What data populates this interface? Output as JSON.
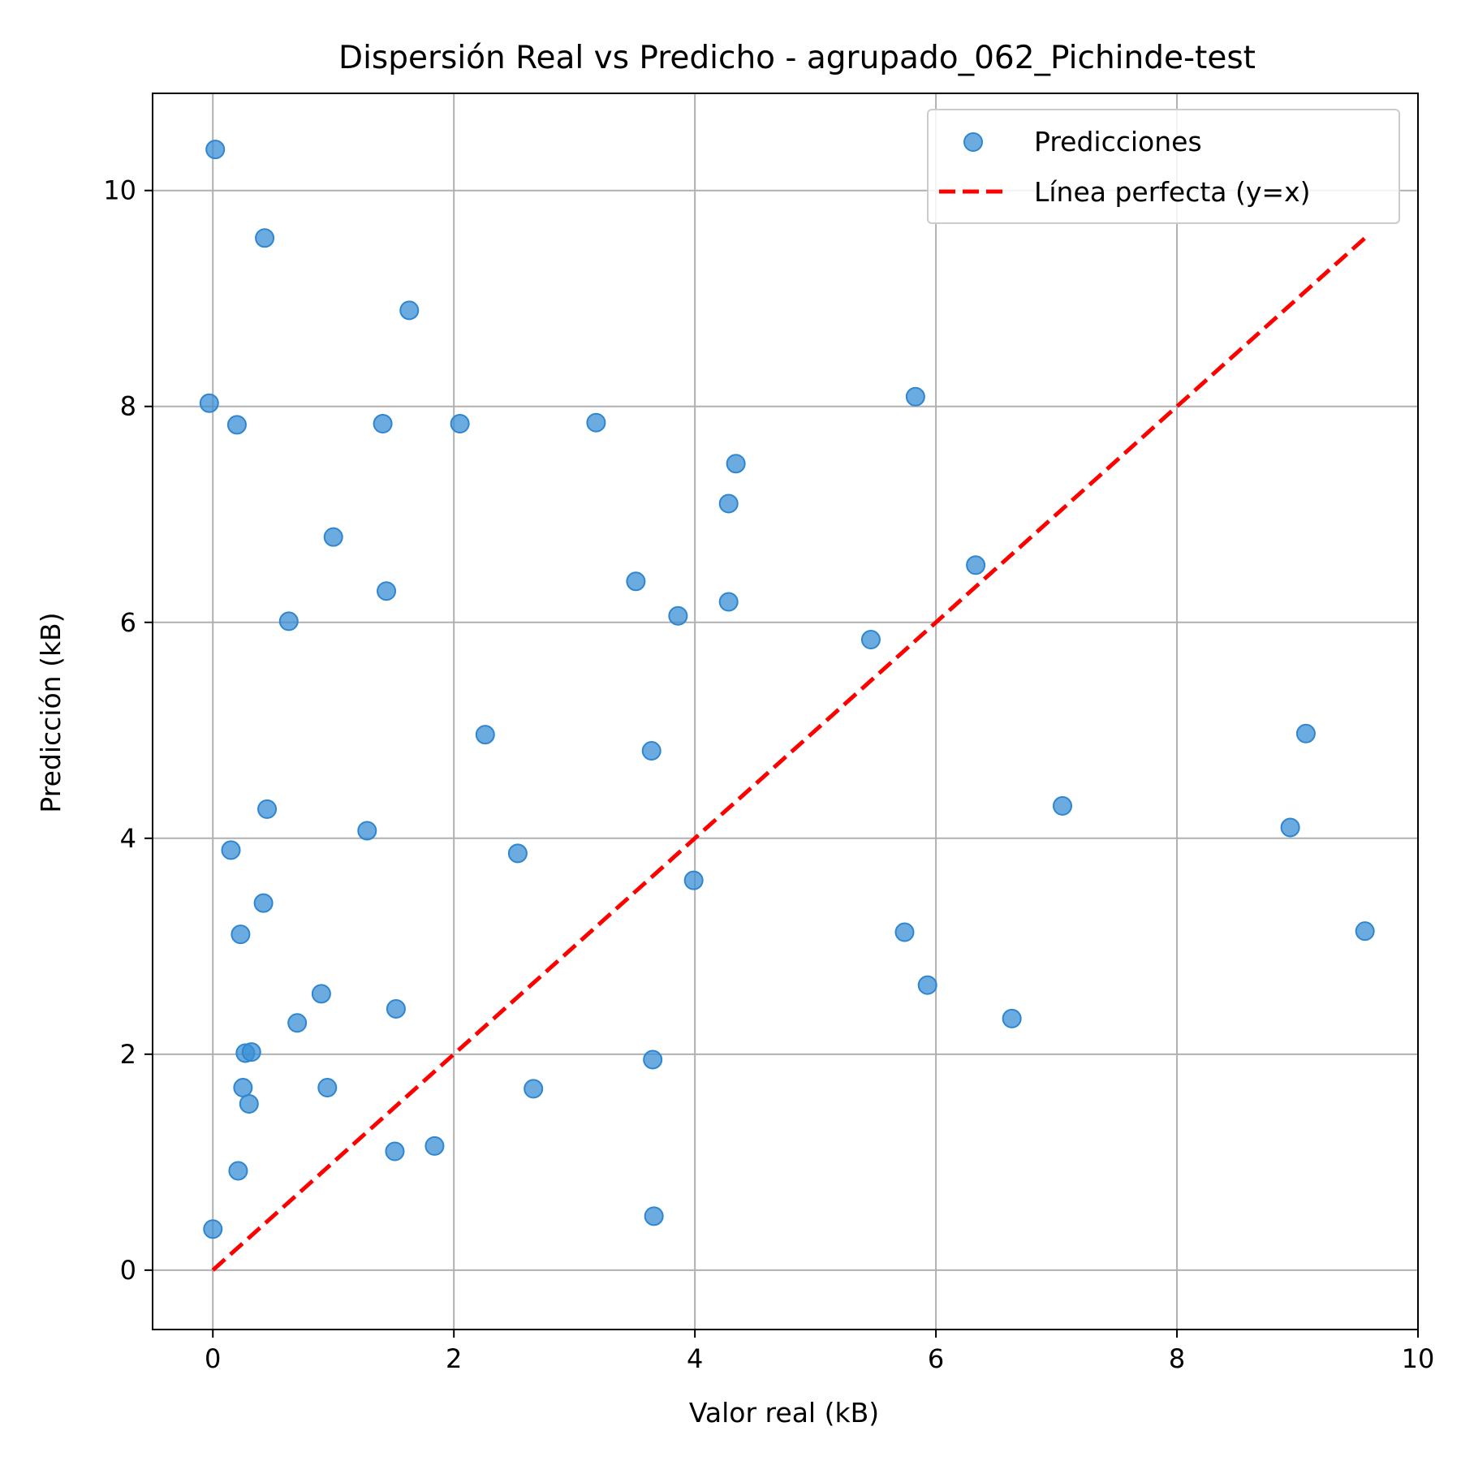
{
  "chart_data": {
    "type": "scatter",
    "title": "Dispersión Real vs Predicho - agrupado_062_Pichinde-test",
    "xlabel": "Valor real (kB)",
    "ylabel": "Predicción (kB)",
    "xlim": [
      -0.5,
      10.0
    ],
    "ylim": [
      -0.55,
      10.9
    ],
    "xticks": [
      0,
      2,
      4,
      6,
      8,
      10
    ],
    "yticks": [
      0,
      2,
      4,
      6,
      8,
      10
    ],
    "grid": true,
    "legend_position": "top-right",
    "colors": {
      "points": "#3a8fd6",
      "reference_line": "#ff0000",
      "grid": "#b0b0b0"
    },
    "series": [
      {
        "name": "Predicciones",
        "kind": "scatter",
        "points": [
          [
            0.02,
            10.38
          ],
          [
            0.43,
            9.56
          ],
          [
            1.63,
            8.89
          ],
          [
            -0.03,
            8.03
          ],
          [
            0.2,
            7.83
          ],
          [
            1.41,
            7.84
          ],
          [
            2.05,
            7.84
          ],
          [
            3.18,
            7.85
          ],
          [
            5.83,
            8.09
          ],
          [
            4.34,
            7.47
          ],
          [
            4.28,
            7.1
          ],
          [
            1.0,
            6.79
          ],
          [
            1.44,
            6.29
          ],
          [
            3.51,
            6.38
          ],
          [
            6.33,
            6.53
          ],
          [
            0.63,
            6.01
          ],
          [
            3.86,
            6.06
          ],
          [
            4.28,
            6.19
          ],
          [
            5.46,
            5.84
          ],
          [
            2.26,
            4.96
          ],
          [
            3.64,
            4.81
          ],
          [
            9.07,
            4.97
          ],
          [
            0.45,
            4.27
          ],
          [
            1.28,
            4.07
          ],
          [
            7.05,
            4.3
          ],
          [
            8.94,
            4.1
          ],
          [
            0.15,
            3.89
          ],
          [
            2.53,
            3.86
          ],
          [
            3.99,
            3.61
          ],
          [
            0.42,
            3.4
          ],
          [
            0.23,
            3.11
          ],
          [
            5.74,
            3.13
          ],
          [
            9.56,
            3.14
          ],
          [
            5.93,
            2.64
          ],
          [
            0.9,
            2.56
          ],
          [
            6.63,
            2.33
          ],
          [
            0.7,
            2.29
          ],
          [
            1.52,
            2.42
          ],
          [
            0.27,
            2.01
          ],
          [
            0.32,
            2.02
          ],
          [
            3.65,
            1.95
          ],
          [
            0.25,
            1.69
          ],
          [
            0.95,
            1.69
          ],
          [
            2.66,
            1.68
          ],
          [
            0.3,
            1.54
          ],
          [
            1.51,
            1.1
          ],
          [
            1.84,
            1.15
          ],
          [
            0.21,
            0.92
          ],
          [
            3.66,
            0.5
          ],
          [
            0.0,
            0.38
          ]
        ]
      },
      {
        "name": "Línea perfecta (y=x)",
        "kind": "line",
        "style": "dashed",
        "points": [
          [
            0.0,
            0.0
          ],
          [
            9.56,
            9.56
          ]
        ]
      }
    ]
  }
}
